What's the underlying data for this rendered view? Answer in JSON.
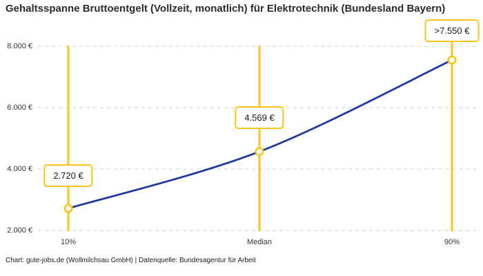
{
  "chart_data": {
    "type": "line",
    "title": "Gehaltsspanne Bruttoentgelt (Vollzeit, monatlich) für Elektrotechnik (Bundesland Bayern)",
    "categories": [
      "10%",
      "Median",
      "90%"
    ],
    "values": [
      2720,
      4569,
      7550
    ],
    "point_labels": [
      "2.720 €",
      "4.569 €",
      ">7.550 €"
    ],
    "ylim": [
      2000,
      8000
    ],
    "y_ticks": [
      2000,
      4000,
      6000,
      8000
    ],
    "y_tick_labels": [
      "2.000 €",
      "4.000 €",
      "6.000 €",
      "8.000 €"
    ],
    "xlabel": "",
    "ylabel": "",
    "grid": "horizontal-dashed",
    "legend": "none",
    "marker": "open-circle",
    "line_color": "#1E3A9E",
    "accent_color": "#FCC419",
    "grid_color": "#cccccc"
  },
  "footer": {
    "attribution": "Chart: gute-jobs.de (Wollmilchsau GmbH) | Datenquelle: Bundesagentur für Arbeit"
  }
}
